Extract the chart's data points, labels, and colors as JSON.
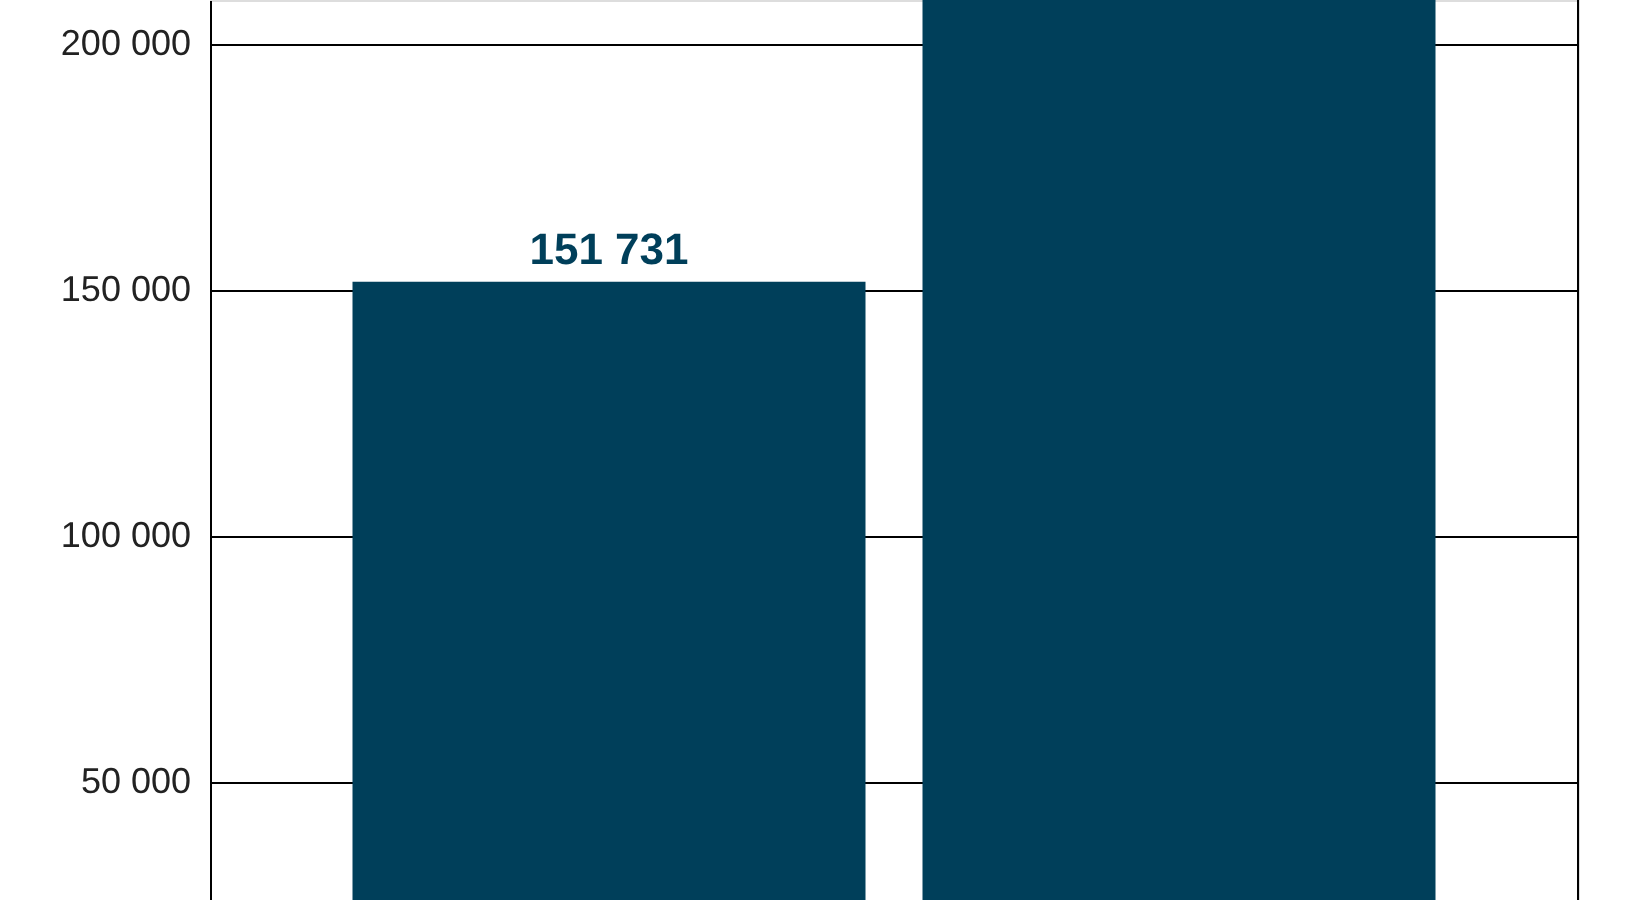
{
  "chart_data": {
    "type": "bar",
    "categories": [
      null,
      null
    ],
    "values": [
      151731,
      209000
    ],
    "color": "#003f5a",
    "value_labels": [
      "151 731",
      null
    ],
    "ylim": [
      26000,
      209000
    ],
    "yticks": [
      {
        "value": 50000,
        "label": "50 000"
      },
      {
        "value": 100000,
        "label": "100 000"
      },
      {
        "value": 150000,
        "label": "150 000"
      },
      {
        "value": 200000,
        "label": "200 000"
      }
    ],
    "grid": "y",
    "tick_labels": "y"
  }
}
